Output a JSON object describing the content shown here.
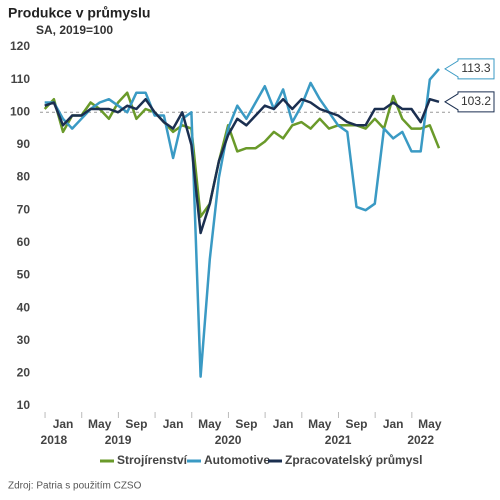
{
  "chart_data": {
    "type": "line",
    "title": "Produkce v průmyslu",
    "subtitle": "SA, 2019=100",
    "source": "Zdroj: Patria s použitím CZSO",
    "categories": [
      null,
      null,
      "Jan",
      null,
      null,
      null,
      "May",
      null,
      null,
      null,
      "Sep",
      null,
      null,
      null,
      "Jan",
      null,
      null,
      null,
      "May",
      null,
      null,
      null,
      "Sep",
      null,
      null,
      null,
      "Jan",
      null,
      null,
      null,
      "May",
      null,
      null,
      null,
      "Sep",
      null,
      null,
      null,
      "Jan",
      null,
      null,
      null,
      "May",
      null
    ],
    "year_labels": [
      null,
      "2018",
      null,
      null,
      null,
      null,
      null,
      null,
      "2019",
      null,
      null,
      null,
      null,
      null,
      null,
      null,
      null,
      null,
      null,
      null,
      "2020",
      null,
      null,
      null,
      null,
      null,
      null,
      null,
      null,
      null,
      null,
      null,
      "2021",
      null,
      null,
      null,
      null,
      null,
      null,
      null,
      null,
      "2022",
      null,
      null
    ],
    "series": [
      {
        "name": "Strojírenství",
        "color": "#6a9a2a",
        "values": [
          101,
          104,
          94,
          99,
          99,
          103,
          101,
          98,
          103,
          106,
          98,
          101,
          100,
          97,
          94,
          96,
          95,
          68,
          72,
          85,
          96,
          88,
          89,
          89,
          91,
          94,
          92,
          96,
          97,
          95,
          98,
          95,
          96,
          96,
          96,
          95,
          98,
          95,
          105,
          98,
          95,
          95,
          96,
          89
        ]
      },
      {
        "name": "Automotive",
        "color": "#3a9ac4",
        "values": [
          103,
          103,
          98,
          95,
          98,
          101,
          103,
          104,
          102,
          100,
          106,
          106,
          99,
          99,
          86,
          98,
          100,
          19,
          55,
          80,
          95,
          102,
          98,
          103,
          108,
          101,
          107,
          97,
          102,
          109,
          104,
          100,
          96,
          94,
          71,
          70,
          72,
          95,
          92,
          94,
          88,
          88,
          110,
          113.3
        ]
      },
      {
        "name": "Zpracovatelský průmysl",
        "color": "#1b2f50",
        "values": [
          102,
          103,
          96,
          99,
          99,
          101,
          101,
          101,
          100,
          102,
          101,
          104,
          100,
          97,
          95,
          100,
          90,
          63,
          72,
          85,
          93,
          98,
          96,
          99,
          102,
          101,
          104,
          101,
          104,
          103,
          101,
          100,
          99,
          97,
          96,
          96,
          101,
          101,
          103,
          101,
          101,
          97,
          104,
          103.2
        ]
      }
    ],
    "ylim": [
      10,
      120
    ],
    "yticks": [
      10,
      20,
      30,
      40,
      50,
      60,
      70,
      80,
      90,
      100,
      110,
      120
    ],
    "reference_line": 100,
    "grid": false,
    "legend": "bottom"
  }
}
